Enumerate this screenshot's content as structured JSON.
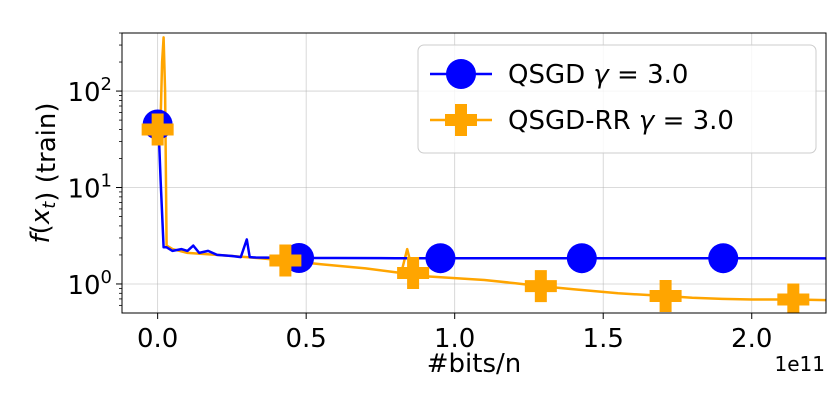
{
  "chart_data": {
    "type": "line",
    "xlabel": "#bits/n",
    "ylabel": "f(x_t) (train)",
    "x_offset_label": "1e11",
    "x_scale_factor": 100000000000.0,
    "xlim": [
      -0.12,
      2.25
    ],
    "ylim": [
      0.5,
      400
    ],
    "y_scale": "log",
    "x_ticks": [
      0.0,
      0.5,
      1.0,
      1.5,
      2.0
    ],
    "x_tick_labels": [
      "0.0",
      "0.5",
      "1.0",
      "1.5",
      "2.0"
    ],
    "y_ticks": [
      1,
      10,
      100
    ],
    "y_tick_labels": [
      "10^0",
      "10^1",
      "10^2"
    ],
    "grid": true,
    "legend_position": "upper-right",
    "series": [
      {
        "name": "QSGD γ = 3.0",
        "color": "#0000ff",
        "marker": "circle",
        "x": [
          0.0,
          0.005,
          0.01,
          0.02,
          0.03,
          0.05,
          0.08,
          0.1,
          0.12,
          0.14,
          0.17,
          0.2,
          0.25,
          0.28,
          0.3,
          0.31,
          0.33,
          0.4,
          0.48,
          0.6,
          0.8,
          0.95,
          1.1,
          1.43,
          1.7,
          1.9,
          2.25
        ],
        "y": [
          45,
          30,
          12,
          2.4,
          2.4,
          2.2,
          2.3,
          2.2,
          2.5,
          2.1,
          2.2,
          2.0,
          1.95,
          1.9,
          2.9,
          1.9,
          1.88,
          1.87,
          1.86,
          1.86,
          1.85,
          1.85,
          1.85,
          1.85,
          1.85,
          1.85,
          1.84
        ],
        "marker_x": [
          0.0,
          0.476,
          0.952,
          1.428,
          1.904
        ],
        "marker_y": [
          45,
          1.86,
          1.85,
          1.85,
          1.85
        ]
      },
      {
        "name": "QSGD-RR γ = 3.0",
        "color": "#ffa500",
        "marker": "plus",
        "x": [
          0.0,
          0.01,
          0.015,
          0.02,
          0.025,
          0.03,
          0.05,
          0.1,
          0.2,
          0.3,
          0.43,
          0.55,
          0.7,
          0.82,
          0.84,
          0.86,
          0.9,
          1.0,
          1.1,
          1.2,
          1.29,
          1.4,
          1.55,
          1.71,
          1.8,
          1.9,
          2.0,
          2.14,
          2.25
        ],
        "y": [
          40,
          50,
          200,
          360,
          100,
          2.5,
          2.3,
          2.1,
          2.0,
          1.9,
          1.75,
          1.6,
          1.45,
          1.3,
          2.3,
          1.3,
          1.2,
          1.15,
          1.1,
          1.02,
          0.95,
          0.88,
          0.8,
          0.75,
          0.72,
          0.7,
          0.69,
          0.69,
          0.68
        ],
        "marker_x": [
          0.0,
          0.43,
          0.86,
          1.29,
          1.71,
          2.14
        ],
        "marker_y": [
          40,
          1.75,
          1.3,
          0.95,
          0.75,
          0.69
        ]
      }
    ]
  }
}
